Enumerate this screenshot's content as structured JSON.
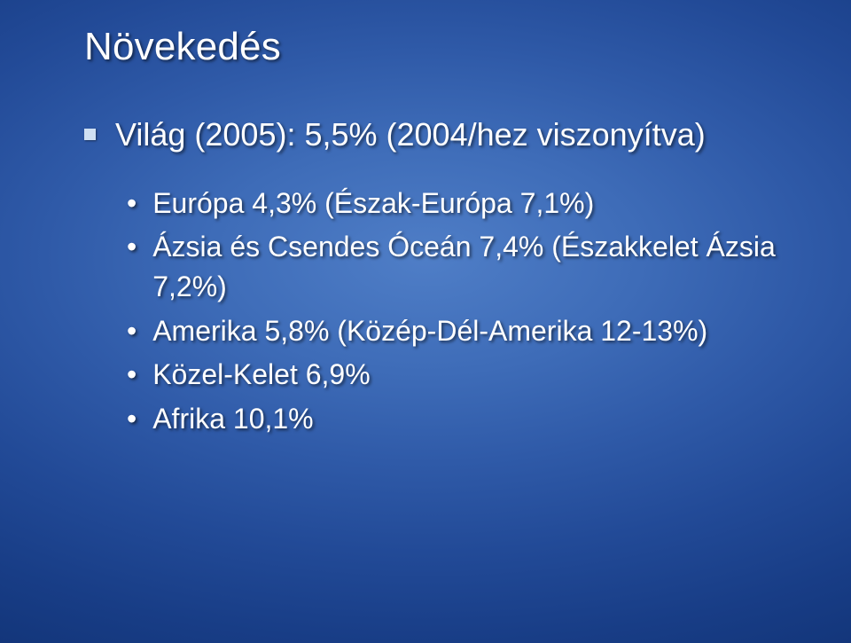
{
  "slide": {
    "background": {
      "type": "radial-gradient",
      "center_color": "#4f7ec7",
      "edge_color": "#08235a"
    },
    "text_color": "#ffffff",
    "title": {
      "text": "Növekedés",
      "fontsize": 44,
      "fontweight": 400,
      "color": "#ffffff"
    },
    "top_bullet": {
      "marker_color": "#cfe0f3",
      "marker_size": 13,
      "text": "Világ (2005): 5,5% (2004/hez viszonyítva)",
      "fontsize": 36
    },
    "sub_bullets": {
      "marker": "•",
      "fontsize": 32,
      "items": [
        {
          "text": "Európa 4,3% (Észak-Európa 7,1%)"
        },
        {
          "text": "Ázsia és Csendes Óceán 7,4% (Északkelet Ázsia 7,2%)"
        },
        {
          "text": "Amerika 5,8% (Közép-Dél-Amerika 12-13%)"
        },
        {
          "text": "Közel-Kelet 6,9%"
        },
        {
          "text": "Afrika 10,1%"
        }
      ]
    }
  }
}
